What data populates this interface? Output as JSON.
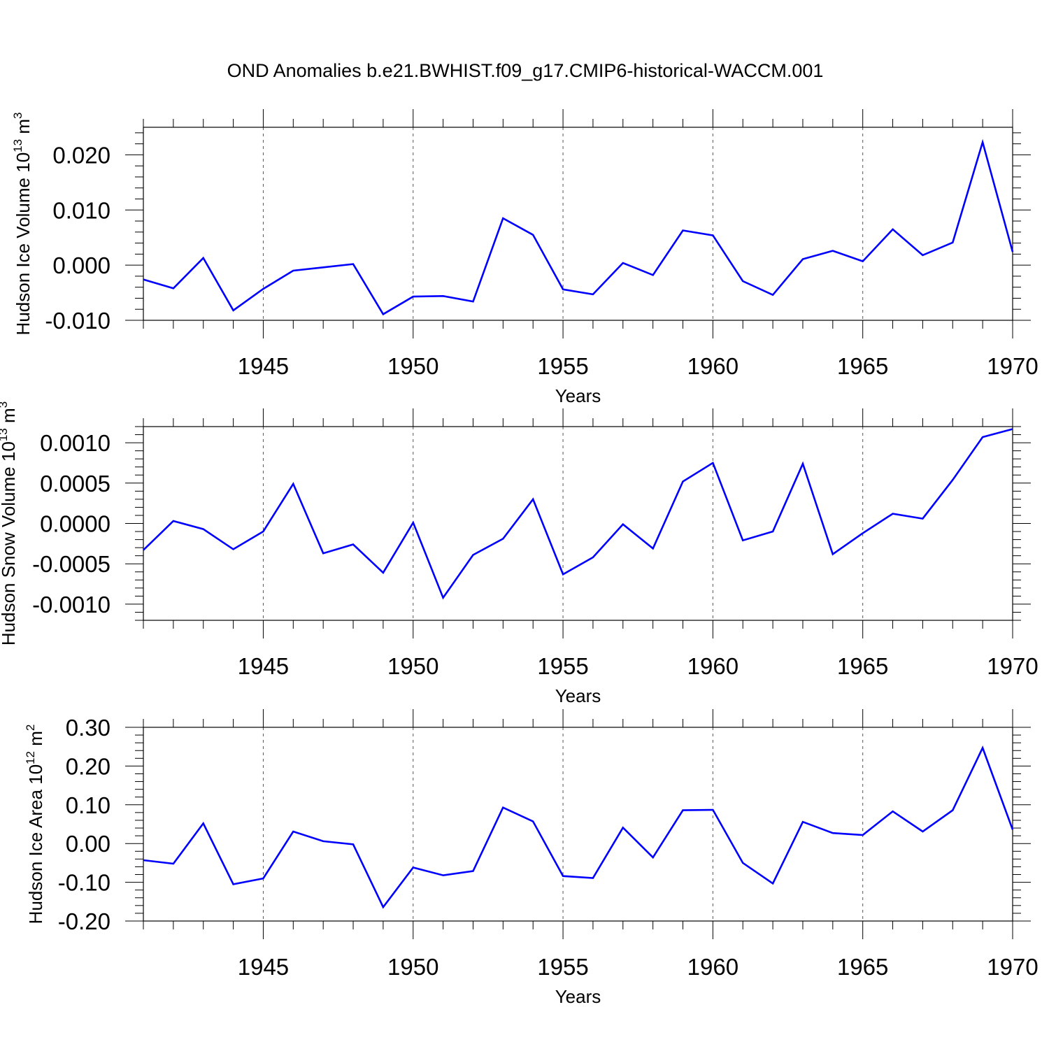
{
  "figure": {
    "title": "OND Anomalies b.e21.BWHIST.f09_g17.CMIP6-historical-WACCM.001"
  },
  "chart_data": [
    {
      "type": "line",
      "title": "",
      "xlabel": "Years",
      "ylabel": "Hudson Ice Volume 10",
      "ylabel_exp": "13",
      "ylabel_unit": " m",
      "ylabel_unit_exp": "3",
      "xlim": [
        1941,
        1970
      ],
      "ylim": [
        -0.01,
        0.025
      ],
      "x_ticks": [
        1945,
        1950,
        1955,
        1960,
        1965,
        1970
      ],
      "y_ticks": [
        -0.01,
        0.0,
        0.01,
        0.02
      ],
      "y_tick_labels": [
        "-0.010",
        "0.000",
        "0.010",
        "0.020"
      ],
      "grid": "vertical-dashed-at-major-x",
      "series": [
        {
          "color": "#0000ff",
          "x": [
            1941,
            1942,
            1943,
            1944,
            1945,
            1946,
            1947,
            1948,
            1949,
            1950,
            1951,
            1952,
            1953,
            1954,
            1955,
            1956,
            1957,
            1958,
            1959,
            1960,
            1961,
            1962,
            1963,
            1964,
            1965,
            1966,
            1967,
            1968,
            1969,
            1970
          ],
          "y": [
            -0.0026,
            -0.0042,
            0.0013,
            -0.0082,
            -0.0043,
            -0.001,
            -0.0004,
            0.0002,
            -0.0089,
            -0.0057,
            -0.0056,
            -0.0066,
            0.0085,
            0.0055,
            -0.0044,
            -0.0053,
            0.0004,
            -0.0018,
            0.0063,
            0.0054,
            -0.0029,
            -0.0054,
            0.0011,
            0.0026,
            0.0007,
            0.0065,
            0.0018,
            0.0041,
            0.0223,
            0.0024
          ]
        }
      ]
    },
    {
      "type": "line",
      "title": "",
      "xlabel": "Years",
      "ylabel": "Hudson Snow Volume 10",
      "ylabel_exp": "13",
      "ylabel_unit": " m",
      "ylabel_unit_exp": "3",
      "xlim": [
        1941,
        1970
      ],
      "ylim": [
        -0.0012,
        0.0012
      ],
      "x_ticks": [
        1945,
        1950,
        1955,
        1960,
        1965,
        1970
      ],
      "y_ticks": [
        -0.001,
        -0.0005,
        0.0,
        0.0005,
        0.001
      ],
      "y_tick_labels": [
        "-0.0010",
        "-0.0005",
        "0.0000",
        "0.0005",
        "0.0010"
      ],
      "grid": "vertical-dashed-at-major-x",
      "series": [
        {
          "color": "#0000ff",
          "x": [
            1941,
            1942,
            1943,
            1944,
            1945,
            1946,
            1947,
            1948,
            1949,
            1950,
            1951,
            1952,
            1953,
            1954,
            1955,
            1956,
            1957,
            1958,
            1959,
            1960,
            1961,
            1962,
            1963,
            1964,
            1965,
            1966,
            1967,
            1968,
            1969,
            1970
          ],
          "y": [
            -0.00033,
            3e-05,
            -7e-05,
            -0.00032,
            -0.0001,
            0.00049,
            -0.00037,
            -0.00026,
            -0.00061,
            1e-05,
            -0.00092,
            -0.00039,
            -0.00019,
            0.0003,
            -0.00063,
            -0.00042,
            -1e-05,
            -0.00031,
            0.00052,
            0.00075,
            -0.00021,
            -0.0001,
            0.00074,
            -0.00038,
            -0.00012,
            0.00012,
            6e-05,
            0.00054,
            0.00107,
            0.00117
          ]
        }
      ]
    },
    {
      "type": "line",
      "title": "",
      "xlabel": "Years",
      "ylabel": "Hudson Ice Area 10",
      "ylabel_exp": "12",
      "ylabel_unit": " m",
      "ylabel_unit_exp": "2",
      "xlim": [
        1941,
        1970
      ],
      "ylim": [
        -0.2,
        0.3
      ],
      "x_ticks": [
        1945,
        1950,
        1955,
        1960,
        1965,
        1970
      ],
      "y_ticks": [
        -0.2,
        -0.1,
        0.0,
        0.1,
        0.2,
        0.3
      ],
      "y_tick_labels": [
        "-0.20",
        "-0.10",
        "0.00",
        "0.10",
        "0.20",
        "0.30"
      ],
      "grid": "vertical-dashed-at-major-x",
      "series": [
        {
          "color": "#0000ff",
          "x": [
            1941,
            1942,
            1943,
            1944,
            1945,
            1946,
            1947,
            1948,
            1949,
            1950,
            1951,
            1952,
            1953,
            1954,
            1955,
            1956,
            1957,
            1958,
            1959,
            1960,
            1961,
            1962,
            1963,
            1964,
            1965,
            1966,
            1967,
            1968,
            1969,
            1970
          ],
          "y": [
            -0.043,
            -0.052,
            0.052,
            -0.105,
            -0.09,
            0.031,
            0.006,
            -0.002,
            -0.164,
            -0.062,
            -0.082,
            -0.071,
            0.093,
            0.057,
            -0.084,
            -0.089,
            0.041,
            -0.036,
            0.086,
            0.087,
            -0.05,
            -0.103,
            0.056,
            0.027,
            0.022,
            0.083,
            0.031,
            0.086,
            0.247,
            0.036
          ]
        }
      ]
    }
  ]
}
